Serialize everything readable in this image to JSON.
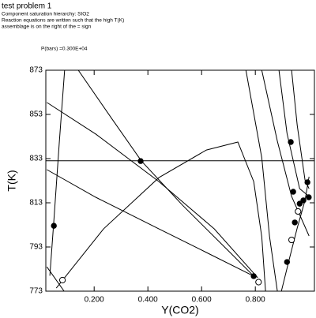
{
  "chart_data": {
    "type": "line",
    "title": "test problem 1",
    "subtitle_lines": [
      "Component saturation hierarchy: SIO2",
      "Reaction equations are written such that the high T(K)",
      "assemblage is on the right of the = sign"
    ],
    "annotation": "P(bars) =0.300E+04",
    "x_label": "Y(CO2)",
    "y_label": "T(K)",
    "xlim": [
      0.02,
      1.02
    ],
    "ylim": [
      773,
      873
    ],
    "xticks": [
      {
        "value": 0.2,
        "label": "0.200"
      },
      {
        "value": 0.4,
        "label": "0.400"
      },
      {
        "value": 0.6,
        "label": "0.600"
      },
      {
        "value": 0.8,
        "label": "0.800"
      }
    ],
    "yticks": [
      773,
      793,
      813,
      833,
      853,
      873
    ],
    "series": [
      {
        "color": "#000000",
        "marker": "none",
        "x": [
          0.02,
          1.02
        ],
        "values": [
          832,
          832
        ]
      },
      {
        "color": "#000000",
        "marker": "none",
        "x": [
          0.09,
          0.07,
          0.05,
          0.035
        ],
        "values": [
          873,
          840,
          805,
          780
        ]
      },
      {
        "color": "#000000",
        "marker": "none",
        "x": [
          0.141,
          0.265,
          0.376,
          0.529,
          0.706,
          0.8
        ],
        "values": [
          873,
          851.2,
          831.9,
          811.9,
          790.5,
          779.1
        ]
      },
      {
        "color": "#000000",
        "marker": "none",
        "x": [
          0.024,
          0.206,
          0.441,
          0.647,
          0.809
        ],
        "values": [
          858.4,
          844.1,
          822.6,
          801.2,
          779.1
        ]
      },
      {
        "color": "#000000",
        "marker": "none",
        "x": [
          0.024,
          0.206,
          0.441,
          0.618,
          0.794
        ],
        "values": [
          828,
          815.5,
          801.2,
          790.5,
          779.8
        ]
      },
      {
        "color": "#000000",
        "marker": "none",
        "x": [
          0.059,
          0.235,
          0.441,
          0.618,
          0.735,
          0.794,
          0.824,
          0.838
        ],
        "values": [
          774.4,
          801.2,
          824.4,
          836.9,
          840.5,
          822.6,
          797.6,
          773
        ]
      },
      {
        "color": "#000000",
        "marker": "none",
        "x": [
          0.024,
          0.088
        ],
        "values": [
          784,
          773
        ]
      },
      {
        "color": "#000000",
        "marker": "none",
        "x": [
          0.765,
          0.824,
          0.853,
          0.882
        ],
        "values": [
          873,
          833.4,
          797.6,
          773
        ]
      },
      {
        "color": "#000000",
        "marker": "none",
        "x": [
          0.824,
          0.882,
          0.935,
          1.0
        ],
        "values": [
          873,
          840.9,
          815.9,
          798
        ]
      },
      {
        "color": "#000000",
        "marker": "none",
        "x": [
          0.888,
          0.918,
          0.965,
          1.0
        ],
        "values": [
          873,
          844.4,
          819.4,
          815.9
        ]
      },
      {
        "color": "#000000",
        "marker": "none",
        "x": [
          0.935,
          0.956,
          0.985,
          1.0
        ],
        "values": [
          873,
          848,
          823.3,
          819.4
        ]
      },
      {
        "color": "#000000",
        "marker": "none",
        "x": [
          0.897,
          0.926,
          0.956,
          0.985,
          1.0
        ],
        "values": [
          773,
          787.3,
          801.6,
          814.1,
          824.8
        ]
      },
      {
        "color": "#000000",
        "marker": "filled",
        "x": [
          0.373,
          0.05,
          0.794,
          0.918,
          0.947,
          0.965,
          0.979,
          0.999,
          0.994,
          0.932,
          0.941
        ],
        "values": [
          831.9,
          802.6,
          779.8,
          786.2,
          804.1,
          812.6,
          814.1,
          815.5,
          822.3,
          840.5,
          818
        ]
      },
      {
        "color": "#000000",
        "marker": "open",
        "x": [
          0.082,
          0.812,
          0.935,
          0.959
        ],
        "values": [
          778,
          777.1,
          796.2,
          809.1
        ]
      }
    ]
  }
}
